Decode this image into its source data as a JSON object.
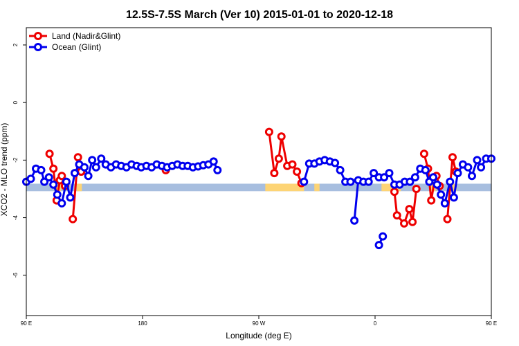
{
  "chart_data": {
    "type": "line",
    "title": "12.5S-7.5S March (Ver 10)   2015-01-01 to 2020-12-18",
    "xlabel": "Longitude (deg E)",
    "ylabel": "XCO2 - MLO trend (ppm)",
    "xlim": [
      90,
      450
    ],
    "ylim": [
      -7.4,
      2.6
    ],
    "x_ticks": [
      {
        "value": 90,
        "label": "90 E"
      },
      {
        "value": 180,
        "label": "180"
      },
      {
        "value": 270,
        "label": "90 W"
      },
      {
        "value": 360,
        "label": "0"
      },
      {
        "value": 450,
        "label": "90 E"
      }
    ],
    "y_ticks": [
      {
        "value": 2,
        "label": "2"
      },
      {
        "value": 0,
        "label": "0"
      },
      {
        "value": -2,
        "label": "-2"
      },
      {
        "value": -4,
        "label": "-4"
      },
      {
        "value": -6,
        "label": "-6"
      }
    ],
    "legend_position": "top-left",
    "grid": false,
    "surface_band": {
      "y_range": [
        -3.08,
        -2.82
      ],
      "ocean_color": "#a7bedf",
      "land_color": "#fdd475",
      "land_segments": [
        [
          275,
          305
        ],
        [
          365,
          380
        ],
        [
          113,
          117
        ],
        [
          129,
          133
        ],
        [
          313,
          317
        ],
        [
          403,
          407
        ],
        [
          419,
          423
        ]
      ]
    },
    "series": [
      {
        "name": "Land (Nadir&Glint)",
        "color": "#ee0000",
        "segments": [
          [
            [
              108,
              -1.78
            ],
            [
              111,
              -2.3
            ],
            [
              113.5,
              -3.4
            ],
            [
              116,
              -2.7
            ],
            [
              117.5,
              -2.55
            ],
            [
              120,
              -2.9
            ]
          ],
          [
            [
              126,
              -4.05
            ],
            [
              130,
              -1.9
            ],
            [
              132.5,
              -2.4
            ]
          ],
          [
            [
              132.5,
              -2.4
            ]
          ],
          [
            [
              198,
              -2.35
            ]
          ],
          [
            [
              278,
              -1.02
            ],
            [
              282,
              -2.45
            ],
            [
              285.5,
              -1.95
            ],
            [
              287.5,
              -1.18
            ],
            [
              292,
              -2.2
            ],
            [
              296,
              -2.15
            ],
            [
              299.5,
              -2.4
            ],
            [
              303,
              -2.8
            ]
          ],
          [
            [
              375,
              -3.1
            ],
            [
              377,
              -3.92
            ],
            [
              382.5,
              -4.2
            ],
            [
              386.5,
              -3.7
            ],
            [
              389,
              -4.15
            ],
            [
              392,
              -3.0
            ]
          ],
          [
            [
              398,
              -1.78
            ],
            [
              401,
              -2.3
            ],
            [
              403.5,
              -3.4
            ],
            [
              406,
              -2.7
            ],
            [
              407.5,
              -2.55
            ],
            [
              410,
              -2.9
            ]
          ],
          [
            [
              416,
              -4.05
            ],
            [
              420,
              -1.9
            ],
            [
              422.5,
              -2.4
            ]
          ]
        ]
      },
      {
        "name": "Ocean (Glint)",
        "color": "#0000ee",
        "segments": [
          [
            [
              90,
              -2.75
            ],
            [
              93.5,
              -2.65
            ],
            [
              97.5,
              -2.3
            ],
            [
              101.5,
              -2.35
            ],
            [
              104,
              -2.75
            ],
            [
              107.5,
              -2.6
            ],
            [
              111,
              -2.85
            ],
            [
              114,
              -3.2
            ],
            [
              117.5,
              -3.5
            ],
            [
              121,
              -2.75
            ],
            [
              124,
              -3.3
            ],
            [
              127.5,
              -2.45
            ],
            [
              131,
              -2.15
            ],
            [
              135,
              -2.25
            ],
            [
              138,
              -2.55
            ],
            [
              141,
              -2.0
            ],
            [
              144,
              -2.25
            ],
            [
              148,
              -1.95
            ],
            [
              151.5,
              -2.15
            ],
            [
              155.5,
              -2.25
            ],
            [
              159.5,
              -2.15
            ],
            [
              163.5,
              -2.2
            ],
            [
              167.5,
              -2.25
            ],
            [
              171.5,
              -2.15
            ],
            [
              175.5,
              -2.2
            ],
            [
              179,
              -2.25
            ],
            [
              183,
              -2.2
            ],
            [
              187,
              -2.25
            ],
            [
              191,
              -2.15
            ],
            [
              195,
              -2.2
            ],
            [
              199,
              -2.25
            ],
            [
              203,
              -2.2
            ],
            [
              207,
              -2.15
            ],
            [
              211,
              -2.2
            ],
            [
              215,
              -2.2
            ],
            [
              219,
              -2.25
            ],
            [
              223,
              -2.22
            ],
            [
              227,
              -2.18
            ],
            [
              231,
              -2.15
            ],
            [
              235,
              -2.05
            ],
            [
              238,
              -2.35
            ]
          ],
          [
            [
              305,
              -2.75
            ],
            [
              309,
              -2.12
            ],
            [
              313,
              -2.12
            ],
            [
              317,
              -2.05
            ],
            [
              321,
              -2.0
            ],
            [
              325,
              -2.05
            ],
            [
              329,
              -2.1
            ],
            [
              333,
              -2.35
            ],
            [
              337,
              -2.75
            ],
            [
              341,
              -2.75
            ]
          ],
          [
            [
              344,
              -4.1
            ],
            [
              347,
              -2.7
            ],
            [
              351,
              -2.75
            ],
            [
              355,
              -2.75
            ],
            [
              359,
              -2.45
            ],
            [
              363,
              -2.6
            ],
            [
              367,
              -2.6
            ],
            [
              371,
              -2.45
            ],
            [
              375,
              -2.85
            ],
            [
              379,
              -2.85
            ],
            [
              383,
              -2.75
            ],
            [
              387,
              -2.75
            ],
            [
              391,
              -2.6
            ],
            [
              395,
              -2.3
            ],
            [
              399,
              -2.35
            ],
            [
              402,
              -2.75
            ],
            [
              405,
              -2.6
            ],
            [
              408,
              -2.85
            ],
            [
              411,
              -3.2
            ],
            [
              414,
              -3.5
            ],
            [
              418,
              -2.75
            ],
            [
              421,
              -3.3
            ],
            [
              424,
              -2.45
            ],
            [
              428,
              -2.15
            ],
            [
              432,
              -2.25
            ],
            [
              435,
              -2.55
            ],
            [
              439,
              -2.0
            ],
            [
              442,
              -2.25
            ],
            [
              446,
              -1.95
            ],
            [
              450,
              -1.95
            ]
          ],
          [
            [
              363,
              -4.95
            ],
            [
              366,
              -4.65
            ]
          ]
        ]
      }
    ]
  }
}
